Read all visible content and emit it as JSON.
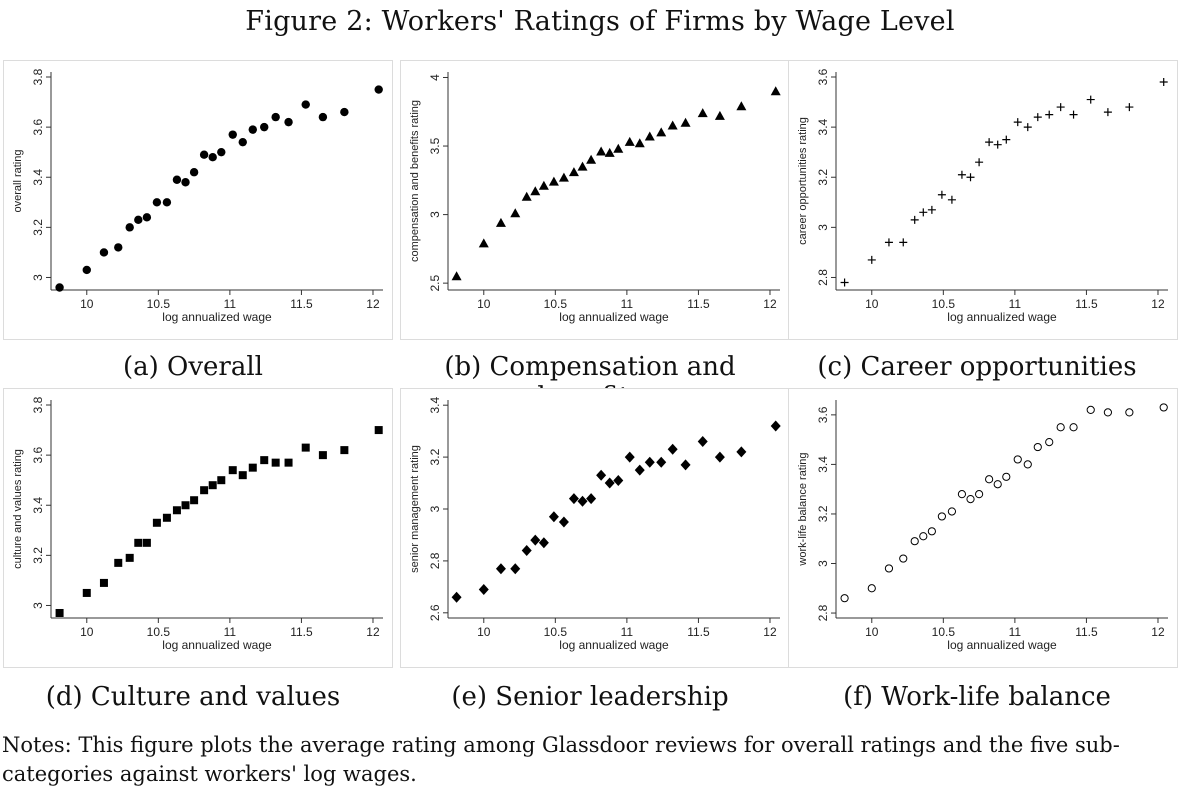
{
  "figure": {
    "title": "Figure 2: Workers' Ratings of Firms by Wage Level",
    "notes": "Notes: This figure plots the average rating among Glassdoor reviews for overall ratings and the five sub-categories against workers' log wages."
  },
  "captions": [
    "(a) Overall",
    "(b) Compensation and benefits",
    "(c) Career opportunities",
    "(d) Culture and values",
    "(e) Senior leadership",
    "(f) Work-life balance"
  ],
  "chart_data": [
    {
      "type": "scatter",
      "marker": "circle",
      "xlabel": "log annualized wage",
      "ylabel": "overall rating",
      "xlim": [
        9.75,
        12.07
      ],
      "ylim": [
        2.95,
        3.82
      ],
      "xticks": [
        10,
        10.5,
        11,
        11.5,
        12
      ],
      "yticks": [
        3,
        3.2,
        3.4,
        3.6,
        3.8
      ],
      "x": [
        9.81,
        10.0,
        10.12,
        10.22,
        10.3,
        10.36,
        10.42,
        10.49,
        10.56,
        10.63,
        10.69,
        10.75,
        10.82,
        10.88,
        10.94,
        11.02,
        11.09,
        11.16,
        11.24,
        11.32,
        11.41,
        11.53,
        11.65,
        11.8,
        12.04
      ],
      "y": [
        2.96,
        3.03,
        3.1,
        3.12,
        3.2,
        3.23,
        3.24,
        3.3,
        3.3,
        3.39,
        3.38,
        3.42,
        3.49,
        3.48,
        3.5,
        3.57,
        3.54,
        3.59,
        3.6,
        3.64,
        3.62,
        3.69,
        3.64,
        3.66,
        3.75
      ]
    },
    {
      "type": "scatter",
      "marker": "triangle",
      "xlabel": "log annualized wage",
      "ylabel": "compensation and benefits rating",
      "xlim": [
        9.75,
        12.07
      ],
      "ylim": [
        2.45,
        4.04
      ],
      "xticks": [
        10,
        10.5,
        11,
        11.5,
        12
      ],
      "yticks": [
        2.5,
        3,
        3.5,
        4
      ],
      "x": [
        9.81,
        10.0,
        10.12,
        10.22,
        10.3,
        10.36,
        10.42,
        10.49,
        10.56,
        10.63,
        10.69,
        10.75,
        10.82,
        10.88,
        10.94,
        11.02,
        11.09,
        11.16,
        11.24,
        11.32,
        11.41,
        11.53,
        11.65,
        11.8,
        12.04
      ],
      "y": [
        2.55,
        2.79,
        2.94,
        3.01,
        3.13,
        3.17,
        3.21,
        3.24,
        3.27,
        3.31,
        3.35,
        3.4,
        3.46,
        3.45,
        3.48,
        3.53,
        3.52,
        3.57,
        3.6,
        3.65,
        3.67,
        3.74,
        3.72,
        3.79,
        3.9
      ]
    },
    {
      "type": "scatter",
      "marker": "plus",
      "xlabel": "log annualized wage",
      "ylabel": "career opportunities rating",
      "xlim": [
        9.75,
        12.07
      ],
      "ylim": [
        2.75,
        3.62
      ],
      "xticks": [
        10,
        10.5,
        11,
        11.5,
        12
      ],
      "yticks": [
        2.8,
        3,
        3.2,
        3.4,
        3.6
      ],
      "x": [
        9.81,
        10.0,
        10.12,
        10.22,
        10.3,
        10.36,
        10.42,
        10.49,
        10.56,
        10.63,
        10.69,
        10.75,
        10.82,
        10.88,
        10.94,
        11.02,
        11.09,
        11.16,
        11.24,
        11.32,
        11.41,
        11.53,
        11.65,
        11.8,
        12.04
      ],
      "y": [
        2.78,
        2.87,
        2.94,
        2.94,
        3.03,
        3.06,
        3.07,
        3.13,
        3.11,
        3.21,
        3.2,
        3.26,
        3.34,
        3.33,
        3.35,
        3.42,
        3.4,
        3.44,
        3.45,
        3.48,
        3.45,
        3.51,
        3.46,
        3.48,
        3.58
      ]
    },
    {
      "type": "scatter",
      "marker": "square",
      "xlabel": "log annualized wage",
      "ylabel": "culture and values rating",
      "xlim": [
        9.75,
        12.07
      ],
      "ylim": [
        2.95,
        3.82
      ],
      "xticks": [
        10,
        10.5,
        11,
        11.5,
        12
      ],
      "yticks": [
        3,
        3.2,
        3.4,
        3.6,
        3.8
      ],
      "x": [
        9.81,
        10.0,
        10.12,
        10.22,
        10.3,
        10.36,
        10.42,
        10.49,
        10.56,
        10.63,
        10.69,
        10.75,
        10.82,
        10.88,
        10.94,
        11.02,
        11.09,
        11.16,
        11.24,
        11.32,
        11.41,
        11.53,
        11.65,
        11.8,
        12.04
      ],
      "y": [
        2.97,
        3.05,
        3.09,
        3.17,
        3.19,
        3.25,
        3.25,
        3.33,
        3.35,
        3.38,
        3.4,
        3.42,
        3.46,
        3.48,
        3.5,
        3.54,
        3.52,
        3.55,
        3.58,
        3.57,
        3.57,
        3.63,
        3.6,
        3.62,
        3.7
      ]
    },
    {
      "type": "scatter",
      "marker": "diamond",
      "xlabel": "log annualized wage",
      "ylabel": "senior management rating",
      "xlim": [
        9.75,
        12.07
      ],
      "ylim": [
        2.58,
        3.42
      ],
      "xticks": [
        10,
        10.5,
        11,
        11.5,
        12
      ],
      "yticks": [
        2.6,
        2.8,
        3,
        3.2,
        3.4
      ],
      "x": [
        9.81,
        10.0,
        10.12,
        10.22,
        10.3,
        10.36,
        10.42,
        10.49,
        10.56,
        10.63,
        10.69,
        10.75,
        10.82,
        10.88,
        10.94,
        11.02,
        11.09,
        11.16,
        11.24,
        11.32,
        11.41,
        11.53,
        11.65,
        11.8,
        12.04
      ],
      "y": [
        2.66,
        2.69,
        2.77,
        2.77,
        2.84,
        2.88,
        2.87,
        2.97,
        2.95,
        3.04,
        3.03,
        3.04,
        3.13,
        3.1,
        3.11,
        3.2,
        3.15,
        3.18,
        3.18,
        3.23,
        3.17,
        3.26,
        3.2,
        3.22,
        3.32
      ]
    },
    {
      "type": "scatter",
      "marker": "hollow-circle",
      "xlabel": "log annualized wage",
      "ylabel": "work-life balance rating",
      "xlim": [
        9.75,
        12.07
      ],
      "ylim": [
        2.78,
        3.66
      ],
      "xticks": [
        10,
        10.5,
        11,
        11.5,
        12
      ],
      "yticks": [
        2.8,
        3,
        3.2,
        3.4,
        3.6
      ],
      "x": [
        9.81,
        10.0,
        10.12,
        10.22,
        10.3,
        10.36,
        10.42,
        10.49,
        10.56,
        10.63,
        10.69,
        10.75,
        10.82,
        10.88,
        10.94,
        11.02,
        11.09,
        11.16,
        11.24,
        11.32,
        11.41,
        11.53,
        11.65,
        11.8,
        12.04
      ],
      "y": [
        2.86,
        2.9,
        2.98,
        3.02,
        3.09,
        3.11,
        3.13,
        3.19,
        3.21,
        3.28,
        3.26,
        3.28,
        3.34,
        3.32,
        3.35,
        3.42,
        3.4,
        3.47,
        3.49,
        3.55,
        3.55,
        3.62,
        3.61,
        3.61,
        3.63
      ]
    }
  ]
}
